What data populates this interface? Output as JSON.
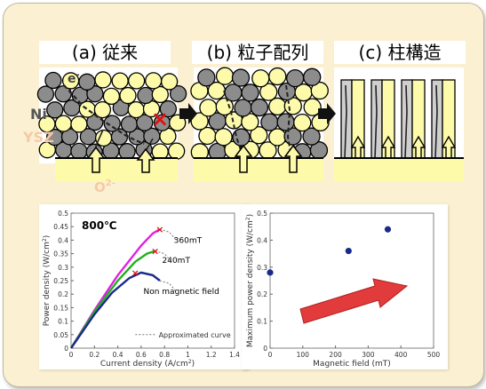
{
  "stages": [
    {
      "label": "(a)  従来"
    },
    {
      "label": "(b) 粒子配列"
    },
    {
      "label": "(c) 柱構造"
    }
  ],
  "diagram_labels": {
    "electron": "e",
    "electron_sup": "-",
    "ni": "Ni",
    "ysz": "YSZ",
    "oxygen_ion": "O",
    "oxygen_ion_sup": "2-",
    "blocked_mark": "×"
  },
  "colors": {
    "panel_bg": "#fbf1d2",
    "ysz_particle": "#fdfbaa",
    "ni_particle": "#8c8c8c",
    "electrolyte": "#fdfbaa",
    "ysz_label": "#f5c9a6",
    "arrow": "#e23b3b",
    "curve_360": "#e020e0",
    "curve_240": "#20b020",
    "curve_0": "#1a2a8a"
  },
  "chart_left": {
    "title": "800℃",
    "xlabel": "Current density (A/cm",
    "xlabel_sup": "2",
    "xlabel_end": ")",
    "ylabel": "Power density (W/cm",
    "ylabel_sup": "2",
    "ylabel_end": ")",
    "xticks": [
      "0",
      "0.2",
      "0.4",
      "0.6",
      "0.8",
      "1",
      "1.2",
      "1.4"
    ],
    "yticks": [
      "0",
      "0.05",
      "0.1",
      "0.15",
      "0.2",
      "0.25",
      "0.3",
      "0.35",
      "0.4",
      "0.45",
      "0.5"
    ],
    "legend_approx": "Approximated curve",
    "label_360": "360mT",
    "label_240": "240mT",
    "label_0": "Non magnetic field"
  },
  "chart_right": {
    "xlabel": "Magnetic field (mT)",
    "ylabel": "Maximum power density (W/cm",
    "ylabel_sup": "2",
    "ylabel_end": ")",
    "xticks": [
      "0",
      "100",
      "200",
      "300",
      "400",
      "500"
    ],
    "yticks": [
      "0",
      "0.1",
      "0.2",
      "0.3",
      "0.4",
      "0.5"
    ]
  },
  "chart_data": [
    {
      "type": "line",
      "title": "800℃",
      "xlabel": "Current density (A/cm2)",
      "ylabel": "Power density (W/cm2)",
      "xlim": [
        0,
        1.4
      ],
      "ylim": [
        0,
        0.5
      ],
      "series": [
        {
          "name": "360mT",
          "x": [
            0,
            0.2,
            0.4,
            0.6,
            0.7,
            0.76
          ],
          "y": [
            0,
            0.14,
            0.27,
            0.38,
            0.425,
            0.44
          ],
          "max_point": [
            0.76,
            0.44
          ]
        },
        {
          "name": "240mT",
          "x": [
            0,
            0.2,
            0.4,
            0.55,
            0.65,
            0.72
          ],
          "y": [
            0,
            0.135,
            0.25,
            0.32,
            0.35,
            0.36
          ],
          "max_point": [
            0.72,
            0.36
          ]
        },
        {
          "name": "Non magnetic field",
          "x": [
            0,
            0.2,
            0.35,
            0.5,
            0.6,
            0.7,
            0.76
          ],
          "y": [
            0,
            0.125,
            0.205,
            0.26,
            0.28,
            0.27,
            0.25
          ],
          "max_point": [
            0.55,
            0.28
          ]
        }
      ],
      "annotations": [
        "Approximated curve"
      ]
    },
    {
      "type": "scatter",
      "xlabel": "Magnetic field (mT)",
      "ylabel": "Maximum power density (W/cm2)",
      "xlim": [
        0,
        500
      ],
      "ylim": [
        0,
        0.5
      ],
      "series": [
        {
          "x": [
            0,
            240,
            360
          ],
          "y": [
            0.28,
            0.36,
            0.44
          ]
        }
      ]
    }
  ]
}
